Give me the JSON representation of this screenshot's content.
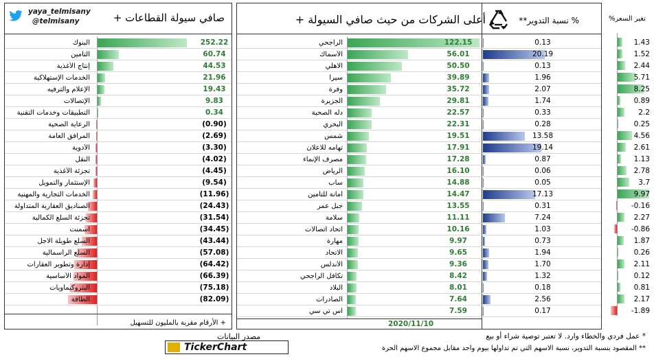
{
  "header": {
    "handle1": "yaya_telmisany",
    "handle2": "@telmisany",
    "sectors_title": "صافي سيولة القطاعات +",
    "companies_title": "أعلى الشركات من حيث صافي السيولة +",
    "turnover_title": "% نسبة التدوير**",
    "price_title": "تغير السعر%"
  },
  "sectors": [
    {
      "name": "البنوك",
      "value": "252.22",
      "amt": 252.22
    },
    {
      "name": "التأمين",
      "value": "60.74",
      "amt": 60.74
    },
    {
      "name": "إنتاج الأغذية",
      "value": "44.53",
      "amt": 44.53
    },
    {
      "name": "الخدمات الإستهلاكية",
      "value": "21.96",
      "amt": 21.96
    },
    {
      "name": "الإعلام والترفيه",
      "value": "19.43",
      "amt": 19.43
    },
    {
      "name": "الإتصالات",
      "value": "9.83",
      "amt": 9.83
    },
    {
      "name": "التطبيقات وخدمات التقنية",
      "value": "0.34",
      "amt": 0.34
    },
    {
      "name": "الرعاية الصحية",
      "value": "(0.90)",
      "amt": -0.9
    },
    {
      "name": "المرافق العامة",
      "value": "(2.69)",
      "amt": -2.69
    },
    {
      "name": "الأدوية",
      "value": "(3.30)",
      "amt": -3.3
    },
    {
      "name": "النقل",
      "value": "(4.02)",
      "amt": -4.02
    },
    {
      "name": "تجزئة الأغذية",
      "value": "(4.45)",
      "amt": -4.45
    },
    {
      "name": "الإستثمار والتمويل",
      "value": "(9.54)",
      "amt": -9.54
    },
    {
      "name": "الخدمات التجارية والمهنية",
      "value": "(11.96)",
      "amt": -11.96
    },
    {
      "name": "الصناديق العقارية المتداولة",
      "value": "(24.43)",
      "amt": -24.43
    },
    {
      "name": "تجزئة السلع الكمالية",
      "value": "(31.54)",
      "amt": -31.54
    },
    {
      "name": "اسمنت",
      "value": "(34.45)",
      "amt": -34.45
    },
    {
      "name": "السلع طويلة الاجل",
      "value": "(43.44)",
      "amt": -43.44
    },
    {
      "name": "السلع الرأسمالية",
      "value": "(57.08)",
      "amt": -57.08
    },
    {
      "name": "إدارة وتطوير العقارات",
      "value": "(64.42)",
      "amt": -64.42
    },
    {
      "name": "المواد الأساسية",
      "value": "(66.39)",
      "amt": -66.39
    },
    {
      "name": "البتروكيماويات",
      "value": "(75.18)",
      "amt": -75.18
    },
    {
      "name": "الطاقة",
      "value": "(82.09)",
      "amt": -82.09
    }
  ],
  "companies": [
    {
      "name": "الراجحي",
      "value": "122.15",
      "amt": 122.15,
      "turnover": "0.13",
      "t": 0.13,
      "price": "1.43",
      "p": 1.43
    },
    {
      "name": "الأسماك",
      "value": "56.01",
      "amt": 56.01,
      "turnover": "20.19",
      "t": 20.19,
      "price": "1.52",
      "p": 1.52
    },
    {
      "name": "الاهلي",
      "value": "50.50",
      "amt": 50.5,
      "turnover": "0.13",
      "t": 0.13,
      "price": "2.44",
      "p": 2.44
    },
    {
      "name": "سيرا",
      "value": "39.89",
      "amt": 39.89,
      "turnover": "1.96",
      "t": 1.96,
      "price": "5.71",
      "p": 5.71
    },
    {
      "name": "وفرة",
      "value": "35.72",
      "amt": 35.72,
      "turnover": "2.07",
      "t": 2.07,
      "price": "8.25",
      "p": 8.25
    },
    {
      "name": "الجزيرة",
      "value": "29.81",
      "amt": 29.81,
      "turnover": "1.74",
      "t": 1.74,
      "price": "0.89",
      "p": 0.89
    },
    {
      "name": "دله الصحية",
      "value": "22.57",
      "amt": 22.57,
      "turnover": "0.33",
      "t": 0.33,
      "price": "2.2",
      "p": 2.2
    },
    {
      "name": "البحري",
      "value": "22.31",
      "amt": 22.31,
      "turnover": "0.28",
      "t": 0.28,
      "price": "0.25",
      "p": 0.25
    },
    {
      "name": "شمس",
      "value": "19.51",
      "amt": 19.51,
      "turnover": "13.58",
      "t": 13.58,
      "price": "4.56",
      "p": 4.56
    },
    {
      "name": "تهامه للاعلان",
      "value": "17.91",
      "amt": 17.91,
      "turnover": "19.14",
      "t": 19.14,
      "price": "2.61",
      "p": 2.61
    },
    {
      "name": "مصرف الإنماء",
      "value": "17.28",
      "amt": 17.28,
      "turnover": "0.87",
      "t": 0.87,
      "price": "1.13",
      "p": 1.13
    },
    {
      "name": "الرياض",
      "value": "16.10",
      "amt": 16.1,
      "turnover": "0.06",
      "t": 0.06,
      "price": "2.78",
      "p": 2.78
    },
    {
      "name": "ساب",
      "value": "14.88",
      "amt": 14.88,
      "turnover": "0.05",
      "t": 0.05,
      "price": "3.7",
      "p": 3.7
    },
    {
      "name": "أمانة للتأمين",
      "value": "14.47",
      "amt": 14.47,
      "turnover": "17.13",
      "t": 17.13,
      "price": "9.97",
      "p": 9.97
    },
    {
      "name": "جبل عمر",
      "value": "13.55",
      "amt": 13.55,
      "turnover": "0.31",
      "t": 0.31,
      "price": "-0.16",
      "p": -0.16
    },
    {
      "name": "سلامة",
      "value": "11.11",
      "amt": 11.11,
      "turnover": "7.24",
      "t": 7.24,
      "price": "2.27",
      "p": 2.27
    },
    {
      "name": "اتحاد اتصالات",
      "value": "10.16",
      "amt": 10.16,
      "turnover": "1.03",
      "t": 1.03,
      "price": "-0.86",
      "p": -0.86
    },
    {
      "name": "مهارة",
      "value": "9.97",
      "amt": 9.97,
      "turnover": "0.73",
      "t": 0.73,
      "price": "1.87",
      "p": 1.87
    },
    {
      "name": "الاتحاد",
      "value": "9.65",
      "amt": 9.65,
      "turnover": "1.94",
      "t": 1.94,
      "price": "0.26",
      "p": 0.26
    },
    {
      "name": "الأندلس",
      "value": "9.36",
      "amt": 9.36,
      "turnover": "1.70",
      "t": 1.7,
      "price": "2.11",
      "p": 2.11
    },
    {
      "name": "تكافل الراجحي",
      "value": "8.42",
      "amt": 8.42,
      "turnover": "1.32",
      "t": 1.32,
      "price": "0.12",
      "p": 0.12
    },
    {
      "name": "البلاد",
      "value": "8.01",
      "amt": 8.01,
      "turnover": "0.18",
      "t": 0.18,
      "price": "0.81",
      "p": 0.81
    },
    {
      "name": "الصادرات",
      "value": "7.64",
      "amt": 7.64,
      "turnover": "2.56",
      "t": 2.56,
      "price": "2.17",
      "p": 2.17
    },
    {
      "name": "اس تي سي",
      "value": "7.59",
      "amt": 7.59,
      "turnover": "0.17",
      "t": 0.17,
      "price": "-1.89",
      "p": -1.89
    }
  ],
  "footer": {
    "sectors_note": "+ الأرقام مقربة بالمليون للتسهيل",
    "date": "2020/11/10",
    "source_label": "مصدر البيانات",
    "source_brand": "TickerChart",
    "note1": "* عمل فردي والخطاء وارد. لا تعتبر توصية شراء أو بيع",
    "note2": "** المقصود بنسبة التدوير، نسبة الاسهم التي تم تداولها بيوم واحد مقابل مجموع الاسهم الحرة"
  },
  "colors": {
    "positive": "#3aa655",
    "negative": "#e02020",
    "turnover": "#1f3b8c",
    "value_green": "#2e7d32"
  }
}
